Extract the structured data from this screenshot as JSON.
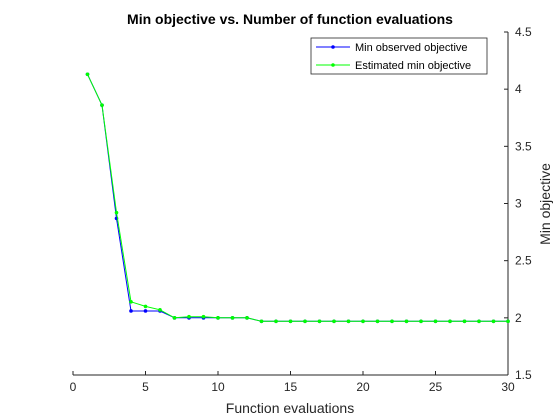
{
  "chart_data": {
    "type": "line",
    "title": "Min objective vs. Number of function evaluations",
    "xlabel": "Function evaluations",
    "ylabel": "Min objective",
    "xlim": [
      0,
      30
    ],
    "ylim": [
      1.5,
      4.5
    ],
    "xticks": [
      0,
      5,
      10,
      15,
      20,
      25,
      30
    ],
    "yticks": [
      1.5,
      2,
      2.5,
      3,
      3.5,
      4,
      4.5
    ],
    "x_tick_labels": [
      "0",
      "5",
      "10",
      "15",
      "20",
      "25",
      "30"
    ],
    "y_tick_labels": [
      "1.5",
      "2",
      "2.5",
      "3",
      "3.5",
      "4",
      "4.5"
    ],
    "y_axis_side": "right",
    "grid": false,
    "legend_position": "top-right",
    "series": [
      {
        "name": "Min observed objective",
        "color": "#0000ff",
        "x": [
          1,
          2,
          3,
          4,
          5,
          6,
          7,
          8,
          9,
          10,
          11,
          12,
          13,
          14,
          15,
          16,
          17,
          18,
          19,
          20,
          21,
          22,
          23,
          24,
          25,
          26,
          27,
          28,
          29,
          30
        ],
        "values": [
          4.13,
          3.86,
          2.87,
          2.06,
          2.06,
          2.06,
          2.0,
          2.0,
          2.0,
          2.0,
          2.0,
          2.0,
          1.97,
          1.97,
          1.97,
          1.97,
          1.97,
          1.97,
          1.97,
          1.97,
          1.97,
          1.97,
          1.97,
          1.97,
          1.97,
          1.97,
          1.97,
          1.97,
          1.97,
          1.97
        ]
      },
      {
        "name": "Estimated min objective",
        "color": "#00ff00",
        "x": [
          1,
          2,
          3,
          4,
          5,
          6,
          7,
          8,
          9,
          10,
          11,
          12,
          13,
          14,
          15,
          16,
          17,
          18,
          19,
          20,
          21,
          22,
          23,
          24,
          25,
          26,
          27,
          28,
          29,
          30
        ],
        "values": [
          4.13,
          3.86,
          2.92,
          2.14,
          2.1,
          2.07,
          2.0,
          2.01,
          2.01,
          2.0,
          2.0,
          2.0,
          1.97,
          1.97,
          1.97,
          1.97,
          1.97,
          1.97,
          1.97,
          1.97,
          1.97,
          1.97,
          1.97,
          1.97,
          1.97,
          1.97,
          1.97,
          1.97,
          1.97,
          1.97
        ]
      }
    ]
  }
}
